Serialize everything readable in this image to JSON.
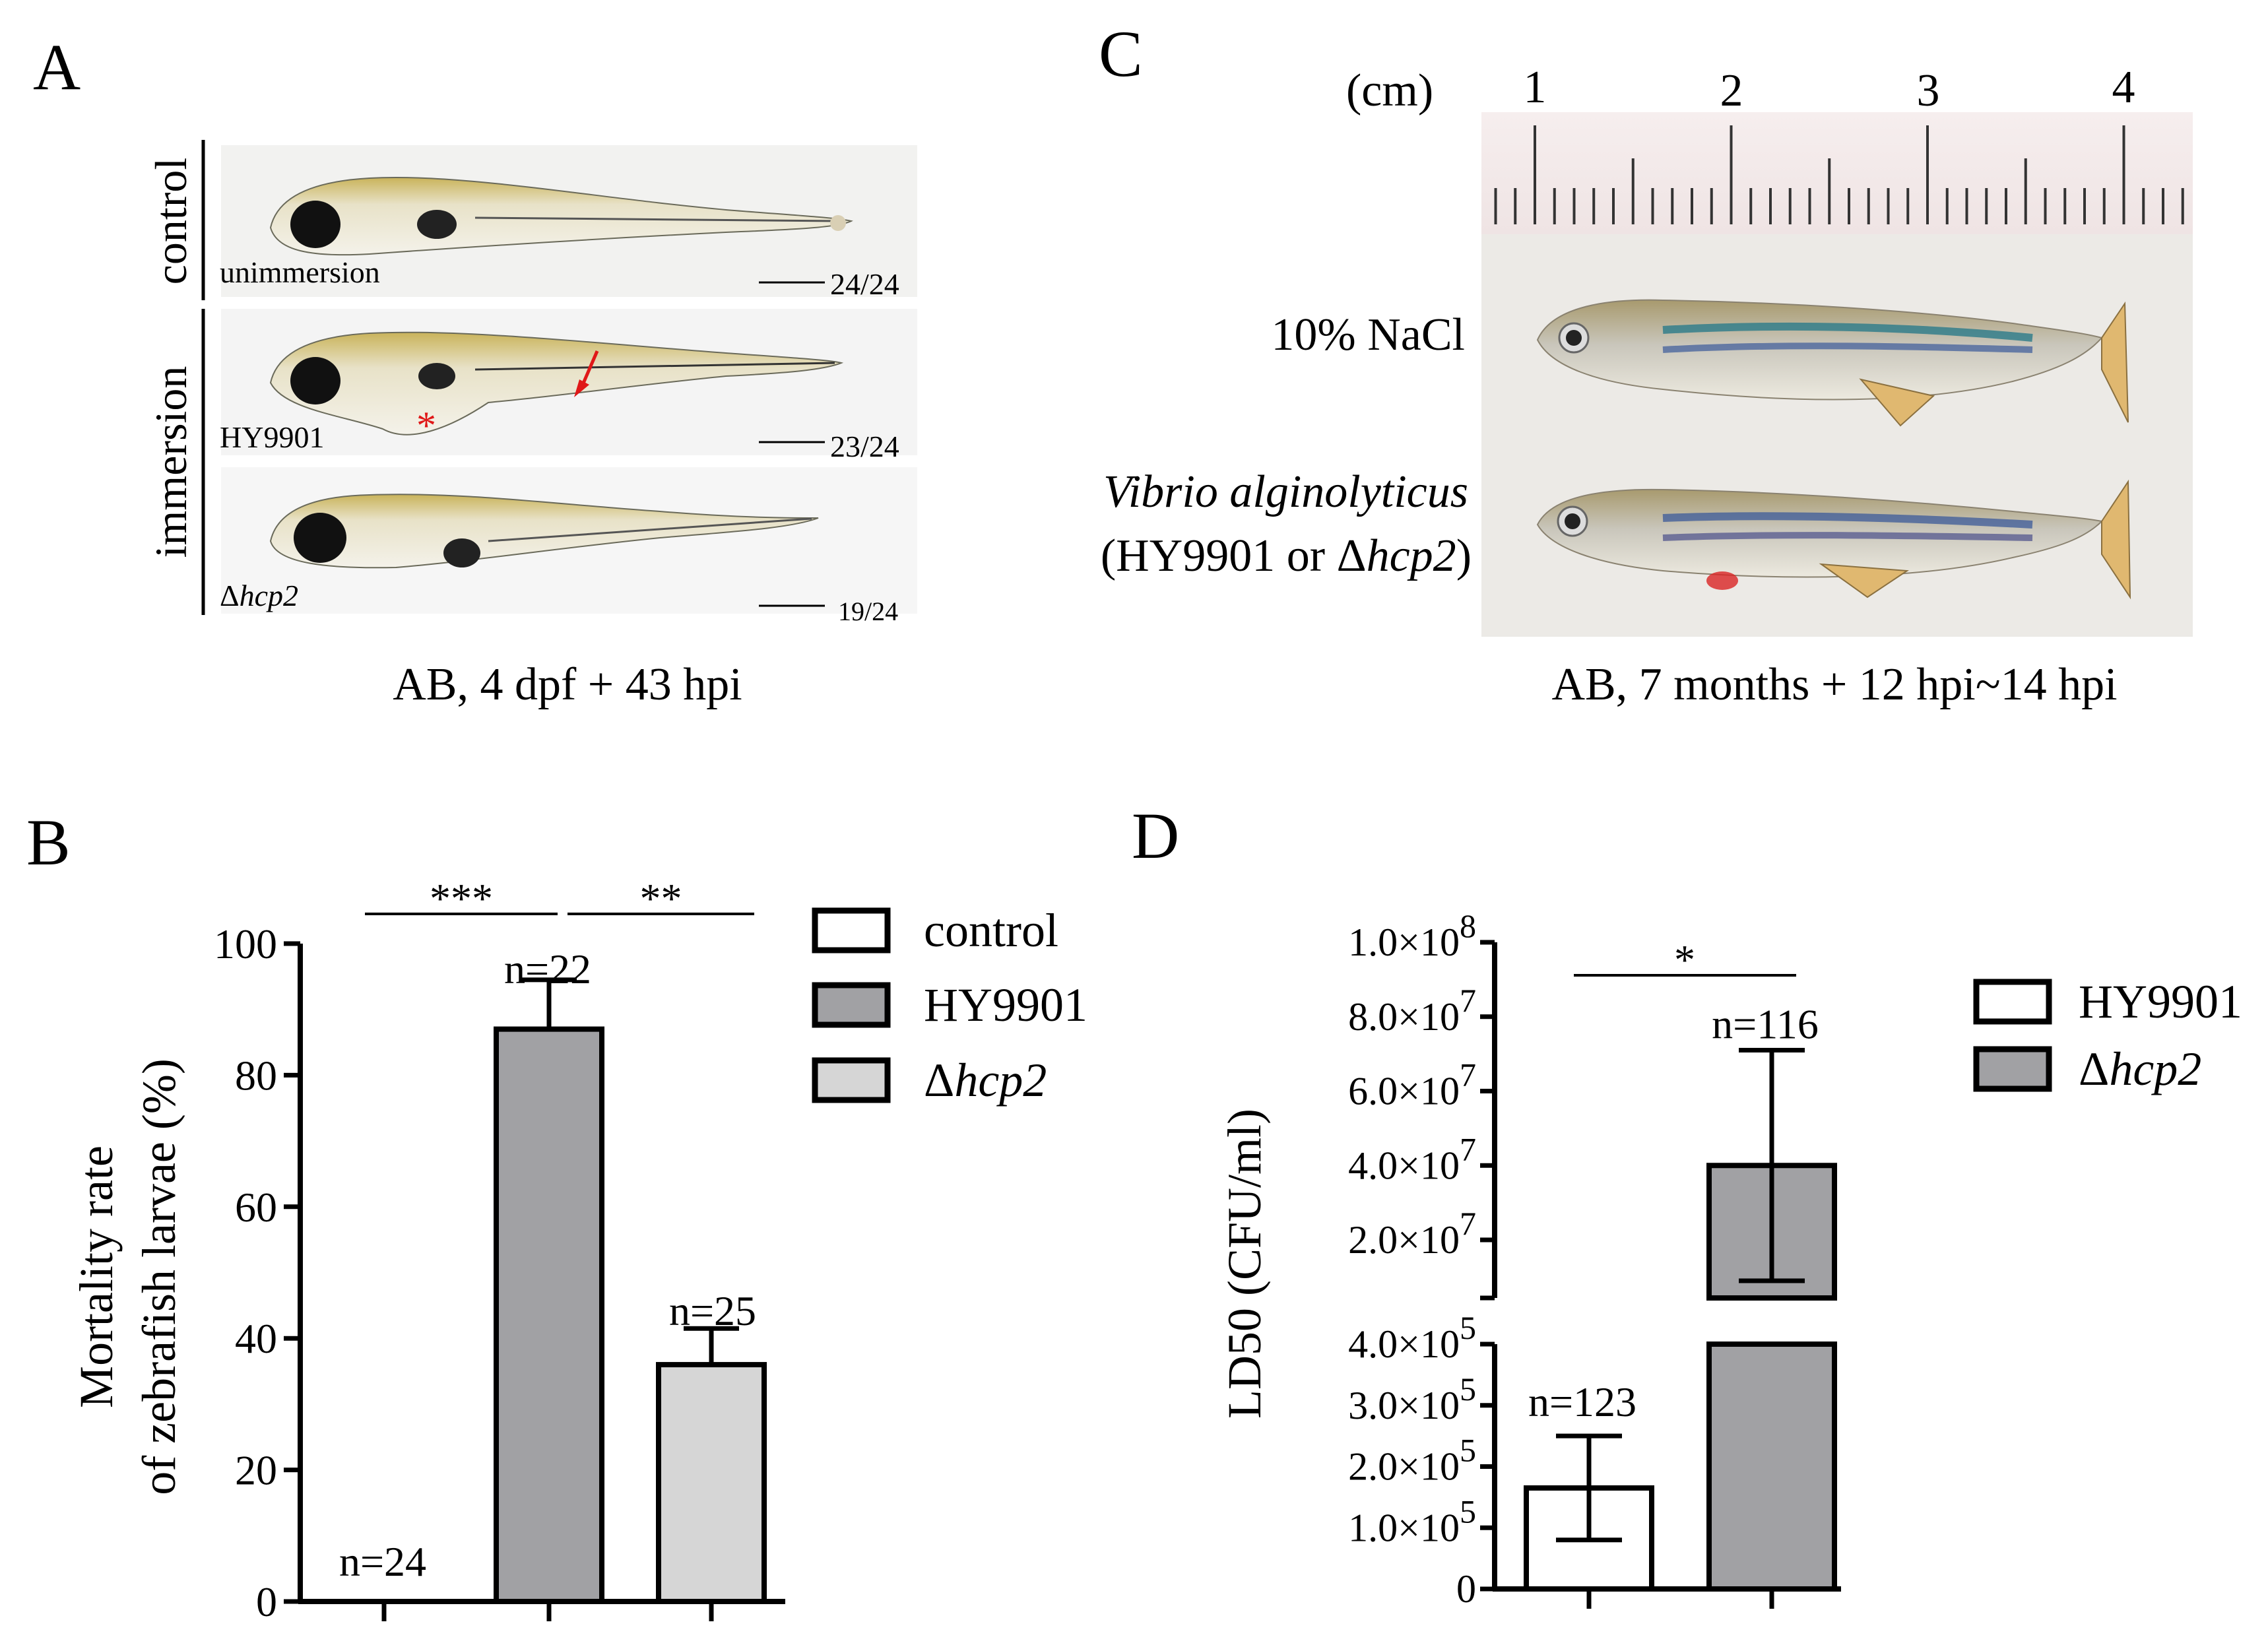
{
  "panels": {
    "A": {
      "label": "A",
      "groups": {
        "control": "control",
        "immersion": "immersion"
      },
      "rows": [
        {
          "name": "unimmersion",
          "strain": "",
          "count": "24/24"
        },
        {
          "name": "HY9901",
          "strain": "",
          "count": "23/24"
        },
        {
          "name": "Δ",
          "strain": "hcp2",
          "count": "19/24"
        }
      ],
      "markers": {
        "asterisk": "*"
      },
      "caption": "AB, 4 dpf + 43 hpi"
    },
    "C": {
      "label": "C",
      "ruler_unit": "(cm)",
      "ruler_ticks": [
        "1",
        "2",
        "3",
        "4"
      ],
      "fish": [
        {
          "label": "10% NaCl"
        },
        {
          "label_italic": "Vibrio alginolyticus",
          "label_line2_pre": "(HY9901 or Δ",
          "label_line2_italic": "hcp2",
          "label_line2_post": ")"
        }
      ],
      "caption": "AB, 7 months + 12 hpi~14 hpi"
    },
    "B": {
      "label": "B"
    },
    "D": {
      "label": "D"
    }
  },
  "chart_data": [
    {
      "panel": "B",
      "type": "bar",
      "categories": [
        "control",
        "HY9901",
        "Δhcp2"
      ],
      "legend": [
        {
          "name": "control",
          "italic_part": "",
          "color": "#ffffff"
        },
        {
          "name": "HY9901",
          "italic_part": "",
          "color": "#a1a1a4"
        },
        {
          "name": "Δ",
          "italic_part": "hcp2",
          "color": "#d6d6d6"
        }
      ],
      "values": [
        0,
        87,
        36
      ],
      "errors": [
        0,
        7.5,
        5.5
      ],
      "n_labels": [
        "n=24",
        "n=22",
        "n=25"
      ],
      "ylabel_line1": "Mortality rate",
      "ylabel_line2": "of zebrafish larvae (%)",
      "ylim": [
        0,
        100
      ],
      "yticks": [
        "0",
        "20",
        "40",
        "60",
        "80",
        "100"
      ],
      "significance": [
        {
          "from": 0,
          "to": 1,
          "label": "***"
        },
        {
          "from": 1,
          "to": 2,
          "label": "**"
        }
      ]
    },
    {
      "panel": "D",
      "type": "bar",
      "categories": [
        "HY9901",
        "Δhcp2"
      ],
      "legend": [
        {
          "name": "HY9901",
          "italic_part": "",
          "color": "#ffffff"
        },
        {
          "name": "Δ",
          "italic_part": "hcp2",
          "color": "#a1a1a4"
        }
      ],
      "values": [
        165000,
        40000000
      ],
      "errors": [
        85000,
        31000000
      ],
      "n_labels": [
        "n=123",
        "n=116"
      ],
      "ylabel": "LD50 (CFU/ml)",
      "axis_break": true,
      "lower_ylim": [
        0,
        400000
      ],
      "upper_ylim": [
        10000000,
        100000000
      ],
      "yticks_lower": [
        {
          "mant": "0",
          "exp": ""
        },
        {
          "mant": "1.0×10",
          "exp": "5"
        },
        {
          "mant": "2.0×10",
          "exp": "5"
        },
        {
          "mant": "3.0×10",
          "exp": "5"
        },
        {
          "mant": "4.0×10",
          "exp": "5"
        }
      ],
      "yticks_upper": [
        {
          "mant": "2.0×10",
          "exp": "7"
        },
        {
          "mant": "4.0×10",
          "exp": "7"
        },
        {
          "mant": "6.0×10",
          "exp": "7"
        },
        {
          "mant": "8.0×10",
          "exp": "7"
        },
        {
          "mant": "1.0×10",
          "exp": "8"
        }
      ],
      "significance": [
        {
          "from": 0,
          "to": 1,
          "label": "*"
        }
      ]
    }
  ]
}
